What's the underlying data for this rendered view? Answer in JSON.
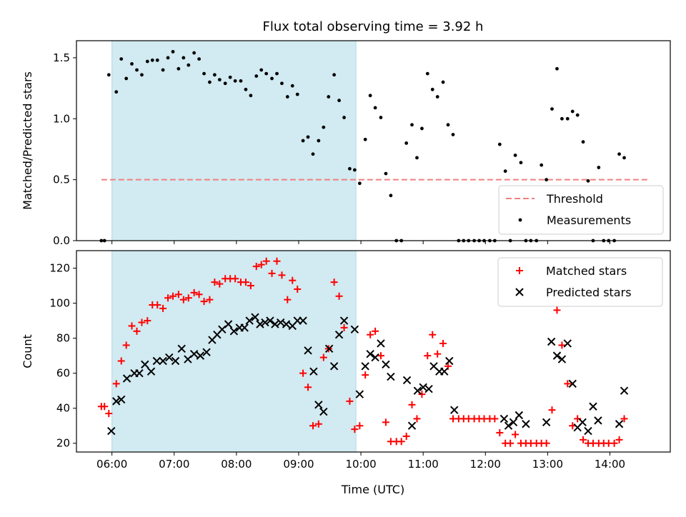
{
  "figure": {
    "title": "Flux total observing time = 3.92 h",
    "xlabel": "Time (UTC)",
    "x_ticks": [
      "06:00",
      "07:00",
      "08:00",
      "09:00",
      "10:00",
      "11:00",
      "12:00",
      "13:00",
      "14:00"
    ],
    "x_range_hours": [
      5.43,
      14.97
    ],
    "observing_window_hours": [
      6.0,
      9.92
    ],
    "window_color": "#add8e6"
  },
  "chart_data": [
    {
      "type": "scatter",
      "ylabel": "Matched/Predicted stars",
      "ylim": [
        0,
        1.64
      ],
      "y_ticks": [
        0.0,
        0.5,
        1.0,
        1.5
      ],
      "legend_position": "lower-right",
      "threshold": {
        "name": "Threshold",
        "value": 0.5,
        "color": "#f08080"
      },
      "series": [
        {
          "name": "Measurements",
          "color": "#000000",
          "x": [
            5.83,
            5.88,
            5.95,
            6.07,
            6.15,
            6.23,
            6.32,
            6.4,
            6.48,
            6.57,
            6.65,
            6.73,
            6.82,
            6.9,
            6.98,
            7.07,
            7.15,
            7.23,
            7.32,
            7.4,
            7.48,
            7.57,
            7.65,
            7.73,
            7.82,
            7.9,
            7.98,
            8.07,
            8.15,
            8.23,
            8.32,
            8.4,
            8.48,
            8.57,
            8.65,
            8.73,
            8.82,
            8.9,
            8.98,
            9.07,
            9.15,
            9.23,
            9.32,
            9.4,
            9.48,
            9.57,
            9.65,
            9.73,
            9.82,
            9.9,
            9.98,
            10.07,
            10.15,
            10.23,
            10.32,
            10.4,
            10.48,
            10.57,
            10.65,
            10.73,
            10.82,
            10.9,
            10.98,
            11.07,
            11.15,
            11.23,
            11.32,
            11.4,
            11.48,
            11.57,
            11.65,
            11.73,
            11.82,
            11.9,
            11.98,
            12.07,
            12.15,
            12.23,
            12.32,
            12.4,
            12.48,
            12.57,
            12.65,
            12.73,
            12.82,
            12.9,
            12.98,
            13.07,
            13.15,
            13.23,
            13.32,
            13.4,
            13.48,
            13.57,
            13.65,
            13.73,
            13.82,
            13.9,
            13.98,
            14.07,
            14.15,
            14.23
          ],
          "y": [
            0,
            0,
            1.36,
            1.22,
            1.49,
            1.33,
            1.45,
            1.4,
            1.36,
            1.47,
            1.48,
            1.48,
            1.4,
            1.5,
            1.55,
            1.41,
            1.5,
            1.44,
            1.54,
            1.49,
            1.37,
            1.3,
            1.36,
            1.32,
            1.29,
            1.34,
            1.31,
            1.31,
            1.24,
            1.19,
            1.35,
            1.4,
            1.37,
            1.33,
            1.37,
            1.29,
            1.18,
            1.27,
            1.2,
            0.82,
            0.85,
            0.71,
            0.82,
            0.93,
            1.18,
            1.36,
            1.15,
            1.01,
            0.59,
            0.58,
            0.47,
            0.83,
            1.19,
            1.09,
            1.01,
            0.55,
            0.37,
            0,
            0,
            0.8,
            0.95,
            0.68,
            0.92,
            1.37,
            1.24,
            1.18,
            1.3,
            0.95,
            0.87,
            0,
            0,
            0,
            0,
            0,
            0,
            0,
            0,
            0.79,
            0.57,
            0,
            0.7,
            0.64,
            0,
            0,
            0,
            0.62,
            0.5,
            1.08,
            1.41,
            1.0,
            1.0,
            1.06,
            1.03,
            0.81,
            0.49,
            0,
            0.6,
            0,
            0,
            0,
            0.71,
            0.68
          ]
        }
      ]
    },
    {
      "type": "scatter",
      "ylabel": "Count",
      "ylim": [
        15,
        130
      ],
      "y_ticks": [
        20,
        40,
        60,
        80,
        100,
        120
      ],
      "legend_position": "top-right",
      "series": [
        {
          "name": "Matched stars",
          "color": "#ff0000",
          "marker": "+",
          "x": [
            5.83,
            5.88,
            5.95,
            6.07,
            6.15,
            6.23,
            6.32,
            6.4,
            6.48,
            6.57,
            6.65,
            6.73,
            6.82,
            6.9,
            6.98,
            7.07,
            7.15,
            7.23,
            7.32,
            7.4,
            7.48,
            7.57,
            7.65,
            7.73,
            7.82,
            7.9,
            7.98,
            8.07,
            8.15,
            8.23,
            8.32,
            8.4,
            8.48,
            8.57,
            8.65,
            8.73,
            8.82,
            8.9,
            8.98,
            9.07,
            9.15,
            9.23,
            9.32,
            9.4,
            9.48,
            9.57,
            9.65,
            9.73,
            9.82,
            9.9,
            9.98,
            10.07,
            10.15,
            10.23,
            10.32,
            10.4,
            10.48,
            10.57,
            10.65,
            10.73,
            10.82,
            10.9,
            10.98,
            11.07,
            11.15,
            11.23,
            11.32,
            11.4,
            11.48,
            11.57,
            11.65,
            11.73,
            11.82,
            11.9,
            11.98,
            12.07,
            12.15,
            12.23,
            12.32,
            12.4,
            12.48,
            12.57,
            12.65,
            12.73,
            12.82,
            12.9,
            12.98,
            13.07,
            13.15,
            13.23,
            13.32,
            13.4,
            13.48,
            13.57,
            13.65,
            13.73,
            13.82,
            13.9,
            13.98,
            14.07,
            14.15,
            14.23
          ],
          "y": [
            41,
            41,
            37,
            54,
            67,
            76,
            87,
            84,
            89,
            90,
            99,
            99,
            97,
            103,
            104,
            105,
            102,
            103,
            106,
            105,
            101,
            102,
            112,
            111,
            114,
            114,
            114,
            112,
            112,
            110,
            121,
            122,
            124,
            117,
            124,
            116,
            102,
            113,
            108,
            60,
            52,
            30,
            31,
            69,
            74,
            112,
            104,
            86,
            44,
            28,
            30,
            59,
            82,
            84,
            70,
            32,
            21,
            21,
            21,
            24,
            42,
            34,
            48,
            70,
            82,
            71,
            77,
            64,
            34,
            34,
            34,
            34,
            34,
            34,
            34,
            34,
            34,
            26,
            20,
            20,
            25,
            20,
            20,
            20,
            20,
            20,
            20,
            39,
            96,
            76,
            54,
            30,
            34,
            22,
            20,
            20,
            20,
            20,
            20,
            20,
            22,
            34
          ]
        },
        {
          "name": "Predicted stars",
          "color": "#000000",
          "marker": "x",
          "x": [
            5.99,
            6.07,
            6.15,
            6.24,
            6.36,
            6.44,
            6.53,
            6.63,
            6.72,
            6.82,
            6.92,
            7.02,
            7.12,
            7.22,
            7.32,
            7.42,
            7.52,
            7.61,
            7.69,
            7.77,
            7.87,
            7.96,
            8.05,
            8.13,
            8.21,
            8.3,
            8.38,
            8.46,
            8.54,
            8.62,
            8.71,
            8.8,
            8.9,
            8.98,
            9.07,
            9.15,
            9.24,
            9.32,
            9.4,
            9.49,
            9.57,
            9.65,
            9.73,
            9.9,
            9.98,
            10.07,
            10.15,
            10.23,
            10.32,
            10.4,
            10.48,
            10.74,
            10.82,
            10.91,
            11.0,
            11.09,
            11.17,
            11.26,
            11.34,
            11.42,
            11.5,
            12.3,
            12.37,
            12.45,
            12.54,
            12.65,
            12.98,
            13.06,
            13.15,
            13.23,
            13.32,
            13.4,
            13.48,
            13.56,
            13.65,
            13.73,
            13.81,
            14.15,
            14.23
          ],
          "y": [
            27,
            44,
            45,
            57,
            60,
            60,
            65,
            61,
            67,
            67,
            69,
            67,
            74,
            68,
            71,
            70,
            72,
            79,
            82,
            85,
            88,
            84,
            86,
            86,
            90,
            92,
            88,
            89,
            90,
            88,
            89,
            88,
            87,
            90,
            90,
            73,
            61,
            42,
            38,
            74,
            64,
            82,
            90,
            85,
            48,
            64,
            71,
            69,
            77,
            65,
            58,
            56,
            30,
            50,
            52,
            51,
            64,
            61,
            61,
            67,
            39,
            34,
            30,
            32,
            36,
            31,
            32,
            78,
            70,
            68,
            77,
            54,
            29,
            32,
            27,
            41,
            33,
            31,
            50
          ]
        }
      ]
    }
  ]
}
